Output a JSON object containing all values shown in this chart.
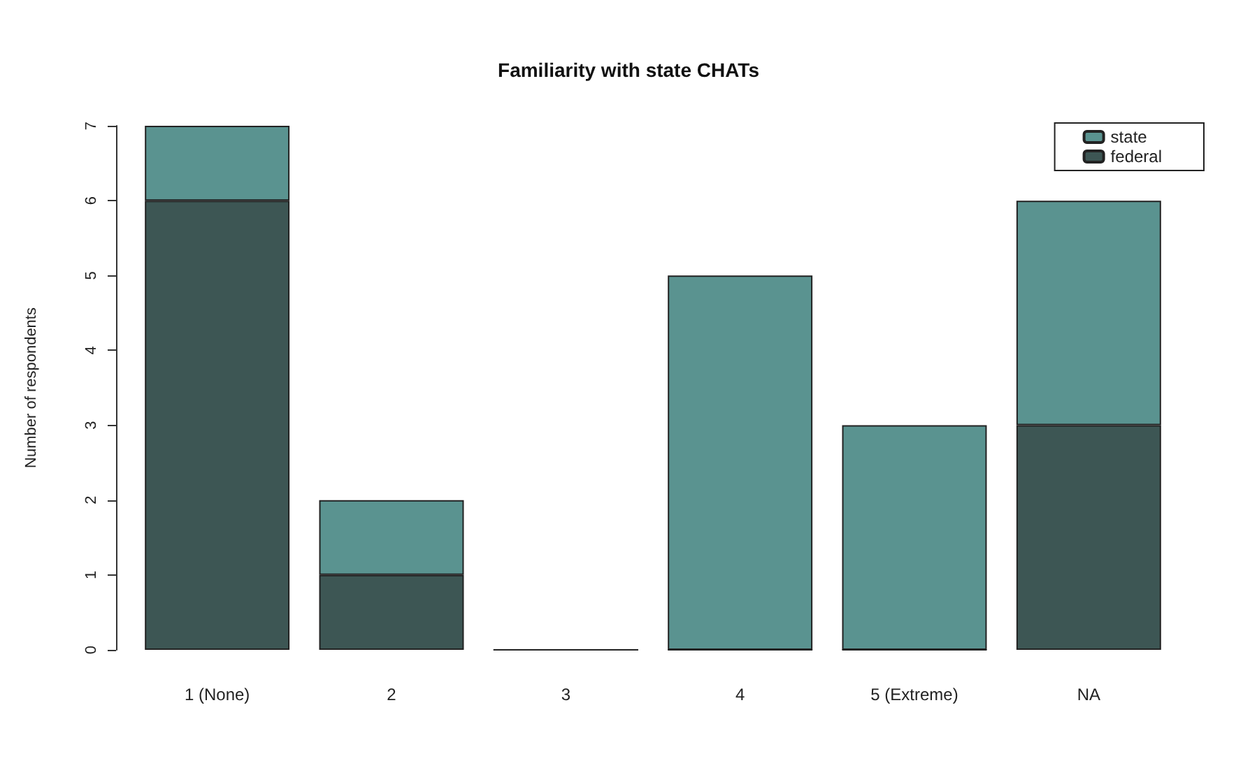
{
  "chart_data": {
    "type": "bar",
    "title": "Familiarity with state CHATs",
    "ylabel": "Number of respondents",
    "categories": [
      "1 (None)",
      "2",
      "3",
      "4",
      "5 (Extreme)",
      "NA"
    ],
    "stacked": true,
    "series": [
      {
        "name": "federal",
        "color": "#3d5654",
        "values": [
          6,
          1,
          0,
          0,
          0,
          3
        ]
      },
      {
        "name": "state",
        "color": "#5a9390",
        "values": [
          1,
          1,
          0,
          5,
          3,
          3
        ]
      }
    ],
    "ylim": [
      0,
      7
    ],
    "yticks": [
      0,
      1,
      2,
      3,
      4,
      5,
      6,
      7
    ],
    "grid": false,
    "legend": "top right"
  }
}
